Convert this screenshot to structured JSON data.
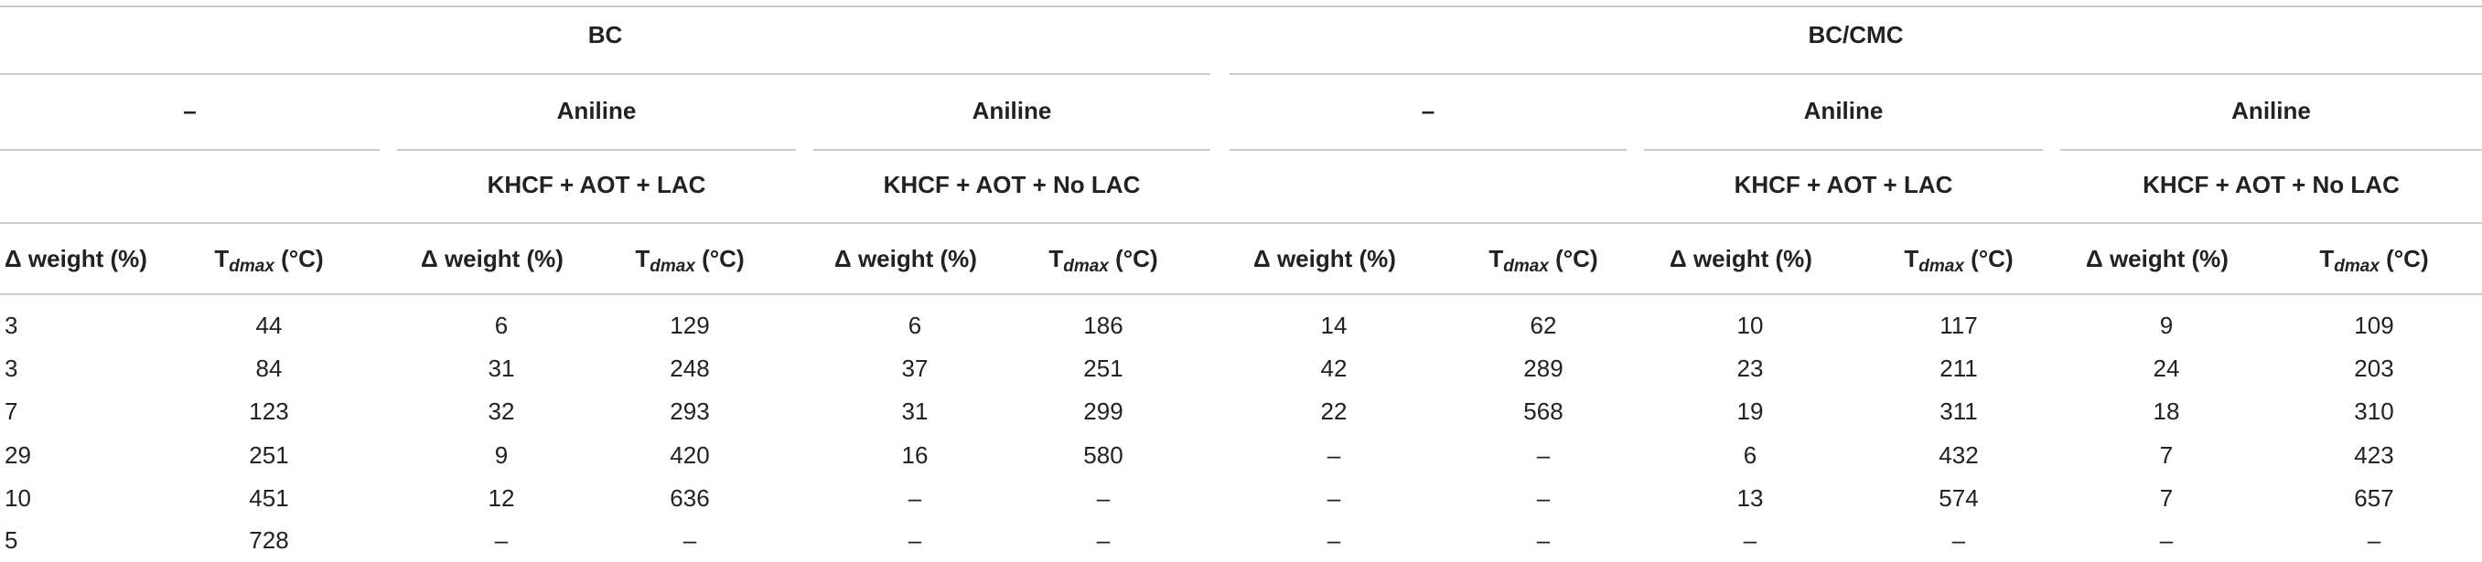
{
  "table": {
    "group_headers": [
      {
        "text": "BC",
        "span": [
          0,
          5
        ]
      },
      {
        "text": "BC/CMC",
        "span": [
          6,
          11
        ]
      }
    ],
    "sub_headers": [
      "–",
      "Aniline",
      "Aniline",
      "–",
      "Aniline",
      "Aniline"
    ],
    "treatment_headers": [
      null,
      "KHCF + AOT + LAC",
      "KHCF + AOT + No LAC",
      null,
      "KHCF + AOT + LAC",
      "KHCF + AOT + No LAC"
    ],
    "column_headers": {
      "weight": "Δ weight (%)",
      "temp": {
        "base": "T",
        "sub": "dmax",
        "unit": " (°C)"
      }
    },
    "rows": [
      [
        3,
        44,
        6,
        129,
        6,
        186,
        14,
        62,
        10,
        117,
        9,
        109
      ],
      [
        3,
        84,
        31,
        248,
        37,
        251,
        42,
        289,
        23,
        211,
        24,
        203
      ],
      [
        7,
        123,
        32,
        293,
        31,
        299,
        22,
        568,
        19,
        311,
        18,
        310
      ],
      [
        29,
        251,
        9,
        420,
        16,
        580,
        "–",
        "–",
        6,
        432,
        7,
        423
      ],
      [
        10,
        451,
        12,
        636,
        "–",
        "–",
        "–",
        "–",
        13,
        574,
        7,
        657
      ],
      [
        5,
        728,
        "–",
        "–",
        "–",
        "–",
        "–",
        "–",
        "–",
        "–",
        "–",
        "–"
      ]
    ]
  }
}
